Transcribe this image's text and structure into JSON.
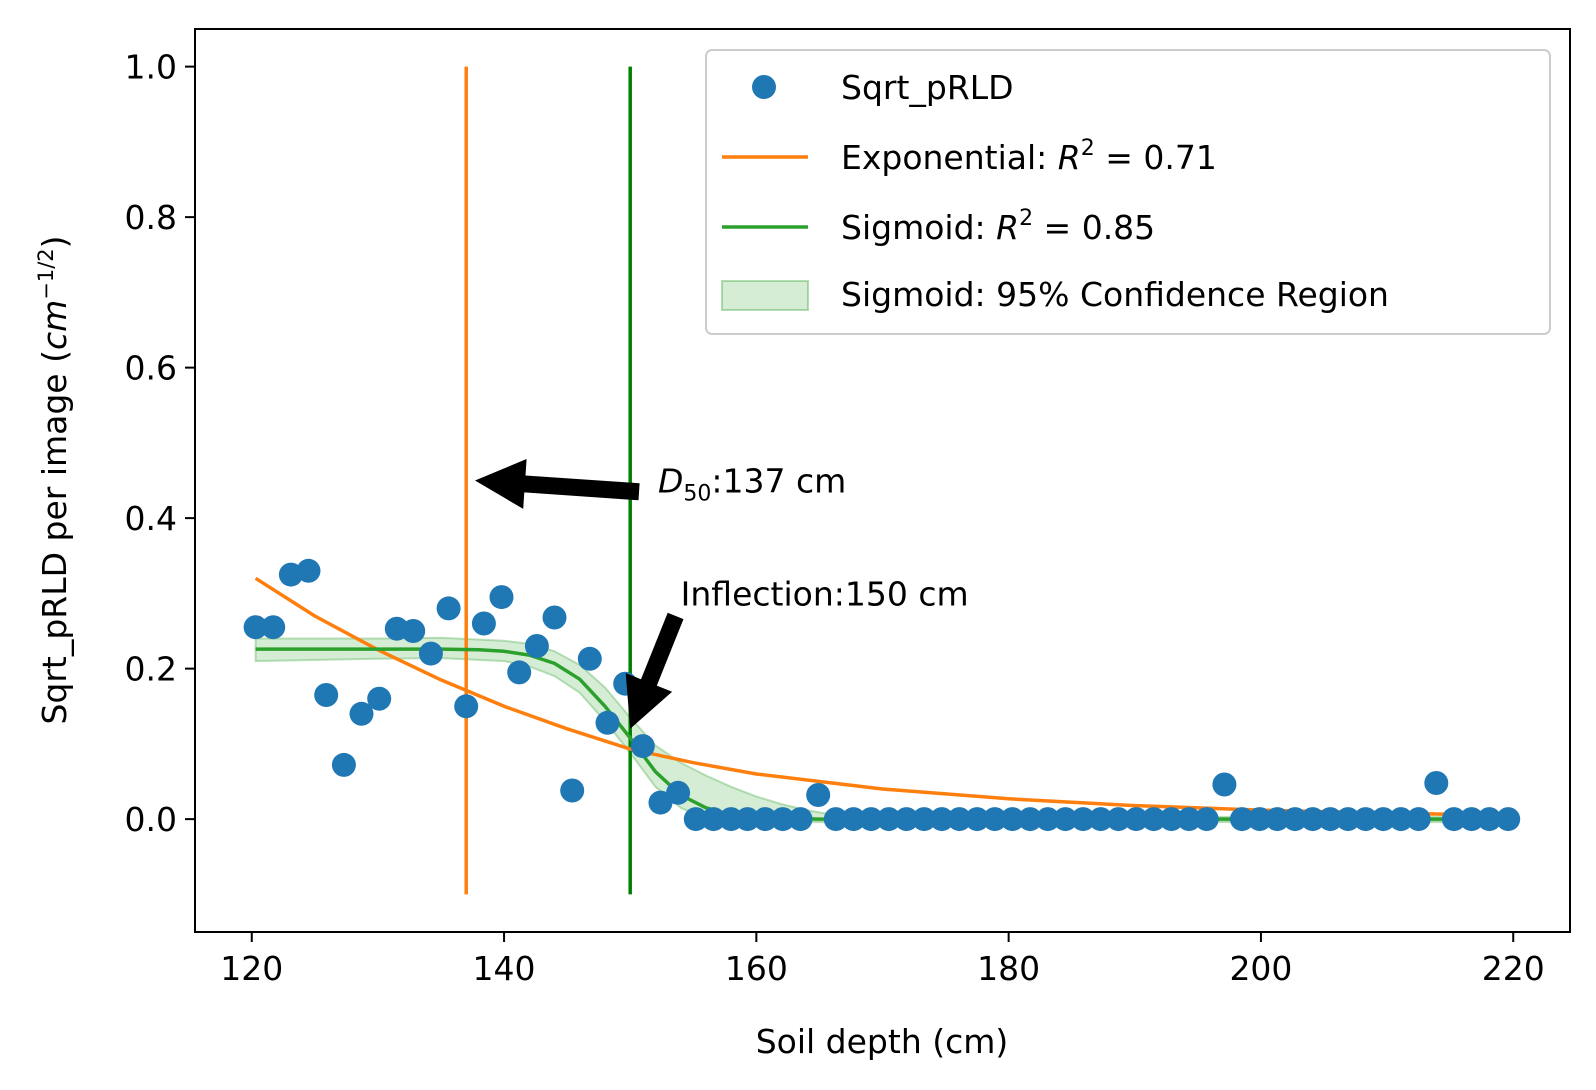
{
  "chart_data": {
    "type": "scatter",
    "xlabel": "Soil depth (cm)",
    "ylabel": "Sqrt_pRLD per image (cm^−1/2)",
    "ylabel_parts": {
      "main": "Sqrt_pRLD per image (",
      "var": "cm",
      "sup": "−1/2",
      "close": ")"
    },
    "xlim": [
      115.5,
      224.5
    ],
    "ylim": [
      -0.15,
      1.05
    ],
    "xticks": [
      120,
      140,
      160,
      180,
      200,
      220
    ],
    "xtick_labels": [
      "120",
      "140",
      "160",
      "180",
      "200",
      "220"
    ],
    "yticks": [
      0.0,
      0.2,
      0.4,
      0.6,
      0.8,
      1.0
    ],
    "ytick_labels": [
      "0.0",
      "0.2",
      "0.4",
      "0.6",
      "0.8",
      "1.0"
    ],
    "grid": false,
    "legend_position": "top-right",
    "colors": {
      "points": "#1f77b4",
      "exponential": "#ff7f0e",
      "sigmoid": "#2ca02c",
      "band": "#2ca02c",
      "exp_vline": "#ff7f0e",
      "sig_vline": "#008000",
      "arrow": "#000000"
    },
    "series": [
      {
        "name": "Sqrt_pRLD",
        "kind": "points",
        "x": [
          120.3,
          121.7,
          123.1,
          124.5,
          125.9,
          127.3,
          128.7,
          130.1,
          131.5,
          132.8,
          134.2,
          135.6,
          137.0,
          138.4,
          139.8,
          141.2,
          142.6,
          144.0,
          145.4,
          146.8,
          148.2,
          149.6,
          151.0,
          152.4,
          153.8,
          155.2,
          156.6,
          158.0,
          159.3,
          160.7,
          162.1,
          163.5,
          164.9,
          166.3,
          167.7,
          169.1,
          170.5,
          171.9,
          173.3,
          174.7,
          176.1,
          177.5,
          178.9,
          180.3,
          181.7,
          183.1,
          184.5,
          185.9,
          187.3,
          188.7,
          190.1,
          191.5,
          192.9,
          194.3,
          195.7,
          197.1,
          198.5,
          199.9,
          201.3,
          202.7,
          204.1,
          205.5,
          206.9,
          208.3,
          209.7,
          211.1,
          212.5,
          213.9,
          215.3,
          216.7,
          218.1,
          219.6
        ],
        "y": [
          0.255,
          0.255,
          0.325,
          0.33,
          0.165,
          0.072,
          0.14,
          0.16,
          0.253,
          0.25,
          0.22,
          0.28,
          0.15,
          0.26,
          0.295,
          0.195,
          0.23,
          0.268,
          0.038,
          0.213,
          0.128,
          0.18,
          0.097,
          0.022,
          0.035,
          0.0,
          0.0,
          0.0,
          0.0,
          0.0,
          0.0,
          0.0,
          0.032,
          0.0,
          0.0,
          0.0,
          0.0,
          0.0,
          0.0,
          0.0,
          0.0,
          0.0,
          0.0,
          0.0,
          0.0,
          0.0,
          0.0,
          0.0,
          0.0,
          0.0,
          0.0,
          0.0,
          0.0,
          0.0,
          0.0,
          0.046,
          0.0,
          0.0,
          0.0,
          0.0,
          0.0,
          0.0,
          0.0,
          0.0,
          0.0,
          0.0,
          0.0,
          0.048,
          0.0,
          0.0,
          0.0,
          0.0
        ]
      },
      {
        "name": "Exponential: R² = 0.71",
        "kind": "line",
        "x": [
          120.3,
          125,
          130,
          135,
          140,
          145,
          150,
          155,
          160,
          170,
          180,
          190,
          200,
          210,
          219.6
        ],
        "y": [
          0.32,
          0.27,
          0.225,
          0.185,
          0.15,
          0.12,
          0.093,
          0.075,
          0.06,
          0.04,
          0.027,
          0.018,
          0.012,
          0.008,
          0.005
        ]
      },
      {
        "name": "Sigmoid: R² = 0.85",
        "kind": "line",
        "x": [
          120.3,
          130,
          135,
          138,
          140,
          142,
          144,
          146,
          148,
          150,
          152,
          154,
          156,
          158,
          160,
          165,
          170,
          180,
          190,
          200,
          210,
          219.6
        ],
        "y": [
          0.226,
          0.226,
          0.226,
          0.225,
          0.223,
          0.218,
          0.207,
          0.186,
          0.15,
          0.108,
          0.063,
          0.032,
          0.015,
          0.006,
          0.002,
          0.0,
          0.0,
          0.0,
          0.0,
          0.0,
          0.0,
          0.0
        ]
      },
      {
        "name": "Sigmoid: 95% Confidence Region",
        "kind": "band",
        "x": [
          120.3,
          130,
          135,
          140,
          142,
          144,
          146,
          148,
          150,
          152,
          154,
          156,
          158,
          160,
          162,
          164,
          166,
          170,
          180,
          200,
          219.6
        ],
        "y_low": [
          0.21,
          0.213,
          0.214,
          0.21,
          0.203,
          0.19,
          0.168,
          0.13,
          0.088,
          0.043,
          0.015,
          0.0,
          -0.003,
          -0.004,
          -0.004,
          -0.004,
          -0.004,
          -0.004,
          -0.004,
          -0.004,
          -0.004
        ],
        "y_high": [
          0.24,
          0.24,
          0.241,
          0.237,
          0.233,
          0.223,
          0.205,
          0.175,
          0.135,
          0.098,
          0.075,
          0.058,
          0.043,
          0.03,
          0.02,
          0.012,
          0.006,
          0.003,
          0.003,
          0.003,
          0.003
        ]
      }
    ],
    "vlines": [
      {
        "x": 137,
        "ymin": -0.1,
        "ymax": 1.0,
        "color": "#ff7f0e"
      },
      {
        "x": 150,
        "ymin": -0.1,
        "ymax": 1.0,
        "color": "#008000"
      }
    ],
    "annotations": [
      {
        "text": ":137 cm",
        "sym": "D",
        "sub": "50",
        "text_x": 152.2,
        "text_y": 0.45,
        "arrow_from": [
          150.7,
          0.435
        ],
        "arrow_to": [
          137.7,
          0.45
        ]
      },
      {
        "text": "Inflection:150 cm",
        "text_x": 154.0,
        "text_y": 0.3,
        "arrow_from": [
          153.6,
          0.27
        ],
        "arrow_to": [
          150.0,
          0.12
        ]
      }
    ],
    "legend": [
      {
        "label": "Sqrt_pRLD",
        "kind": "marker"
      },
      {
        "label": "Exponential: ",
        "math": "R",
        "sup": "2",
        "tail": " = 0.71",
        "kind": "line-exp"
      },
      {
        "label": "Sigmoid: ",
        "math": "R",
        "sup": "2",
        "tail": " = 0.85",
        "kind": "line-sig"
      },
      {
        "label": "Sigmoid: 95% Confidence Region",
        "kind": "patch"
      }
    ]
  }
}
